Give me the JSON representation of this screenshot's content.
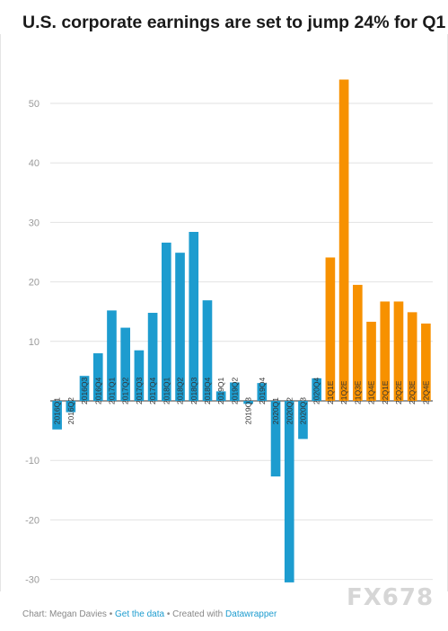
{
  "chart_data": {
    "type": "bar",
    "title": "U.S. corporate earnings are set to jump 24% for Q1",
    "xlabel": "",
    "ylabel": "",
    "ylim": [
      -31,
      57
    ],
    "yticks": [
      50,
      40,
      30,
      20,
      10,
      -10,
      -20,
      -30
    ],
    "grid": true,
    "categories": [
      "2016Q1",
      "2016Q2",
      "2016Q3",
      "2016Q4",
      "2017Q1",
      "2017Q2",
      "2017Q3",
      "2017Q4",
      "2018Q1",
      "2018Q2",
      "2018Q3",
      "2018Q4",
      "2019Q1",
      "2019Q2",
      "2019Q3",
      "2019Q4",
      "2020Q1",
      "2020Q2",
      "2020Q3",
      "2020Q4",
      "21Q1E",
      "21Q2E",
      "21Q3E",
      "21Q4E",
      "22Q1E",
      "22Q2E",
      "22Q3E",
      "22Q4E"
    ],
    "values": [
      -4.8,
      -1.9,
      4.2,
      8.0,
      15.2,
      12.3,
      8.5,
      14.8,
      26.6,
      24.9,
      28.4,
      16.9,
      1.6,
      3.1,
      -0.5,
      3.0,
      -12.7,
      -30.5,
      -6.4,
      3.8,
      24.1,
      54.0,
      19.5,
      13.3,
      16.7,
      16.7,
      14.9,
      13.0
    ],
    "estimate_start_index": 20,
    "colors": {
      "actual": "#1d9ccf",
      "estimate": "#f79100",
      "grid": "#e2e2e2",
      "tick": "#9a9a9a",
      "label": "#333333"
    }
  },
  "footer": {
    "prefix": "Chart: Megan Davies •",
    "get_data": "Get the data",
    "middle": "• Created with",
    "tool": "Datawrapper"
  },
  "watermark": "FX678"
}
